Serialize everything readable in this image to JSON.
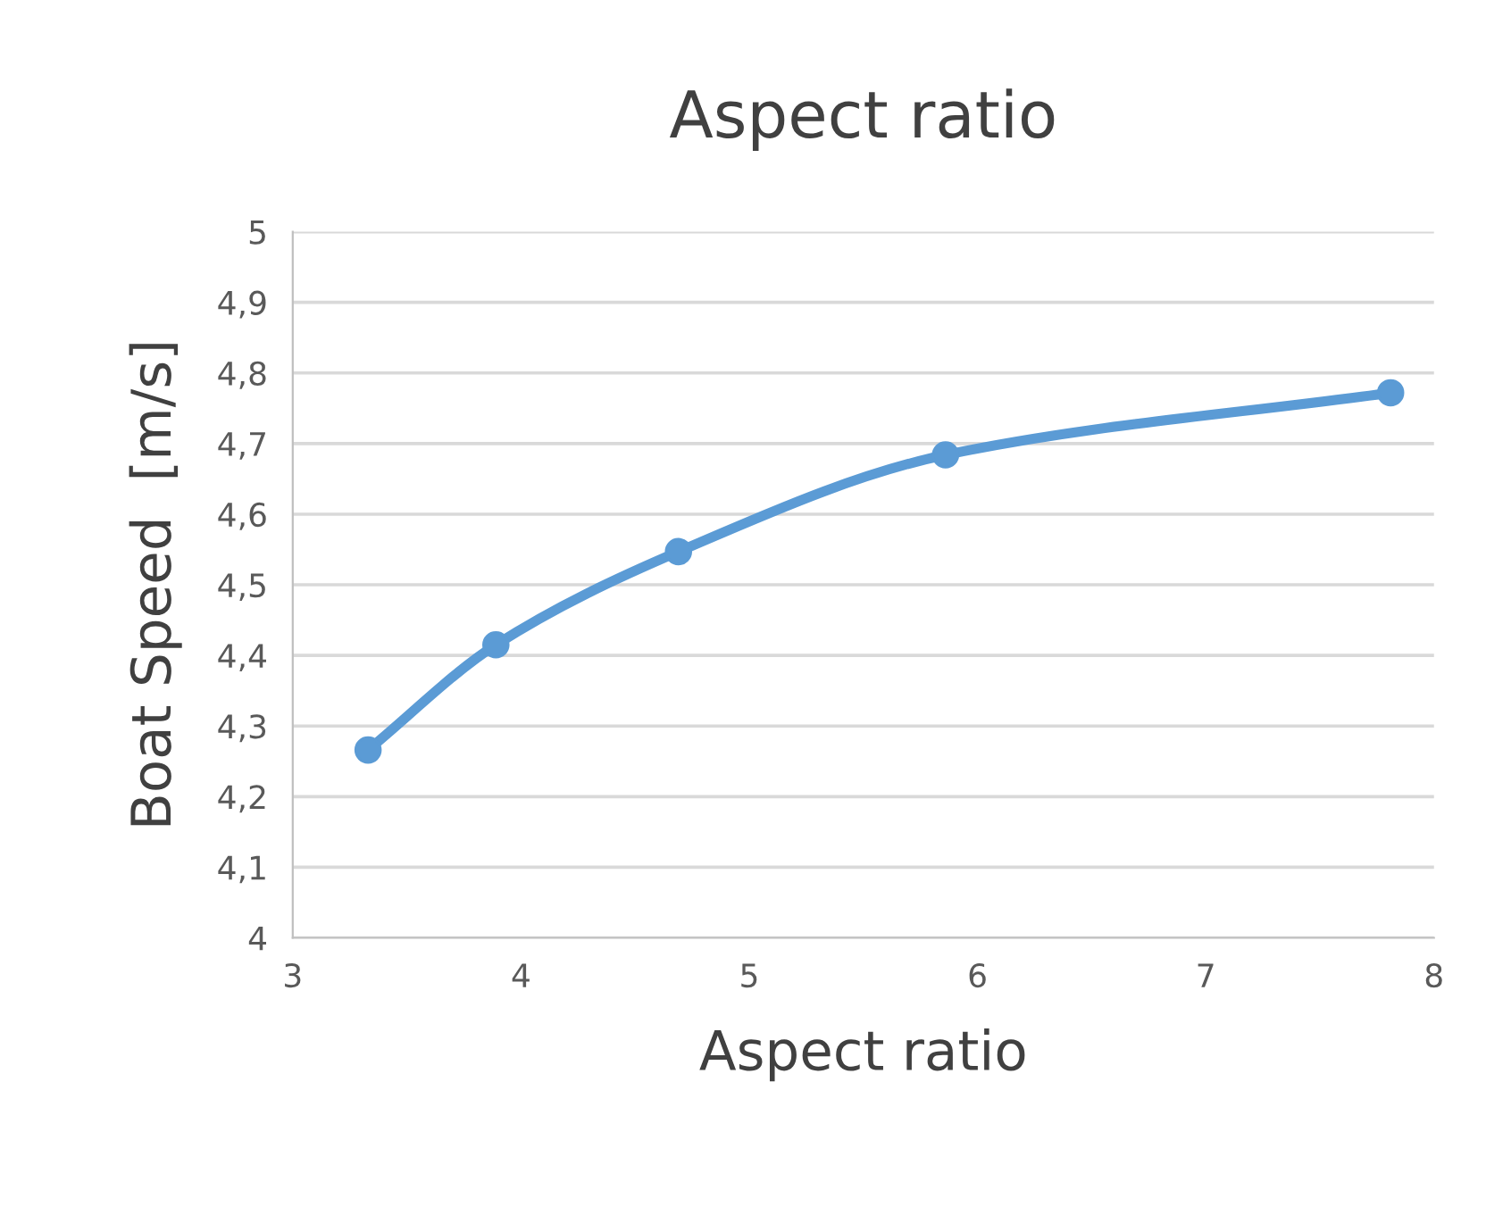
{
  "chart_data": {
    "type": "line",
    "title": "Aspect ratio",
    "xlabel": "Aspect ratio",
    "ylabel": "Boat Speed  [m/s]",
    "x": [
      3.33,
      3.89,
      4.69,
      5.86,
      7.81
    ],
    "series": [
      {
        "color": "#5b9bd5",
        "values": [
          4.266,
          4.415,
          4.547,
          4.684,
          4.772
        ]
      }
    ],
    "xlim": [
      3,
      8
    ],
    "xticks": [
      3,
      4,
      5,
      6,
      7,
      8
    ],
    "ylim": [
      4,
      5
    ],
    "yticks": [
      4,
      {
        "value": 4.1,
        "label": "4,1"
      },
      {
        "value": 4.2,
        "label": "4,2"
      },
      {
        "value": 4.3,
        "label": "4,3"
      },
      {
        "value": 4.4,
        "label": "4,4"
      },
      {
        "value": 4.5,
        "label": "4,5"
      },
      {
        "value": 4.6,
        "label": "4,6"
      },
      {
        "value": 4.7,
        "label": "4,7"
      },
      {
        "value": 4.8,
        "label": "4,8"
      },
      {
        "value": 4.9,
        "label": "4,9"
      },
      5
    ],
    "grid": "y",
    "marker": "circle",
    "line_style": "solid"
  }
}
